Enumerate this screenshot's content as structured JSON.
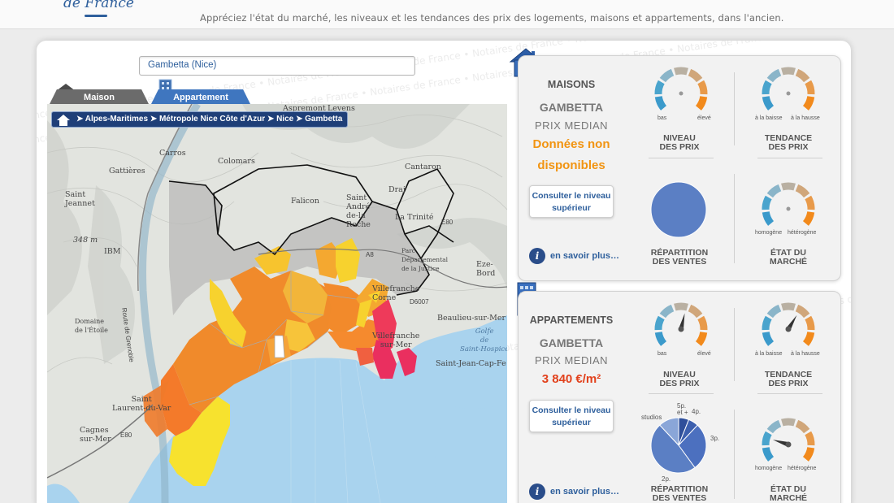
{
  "header": {
    "logo_text": "de France",
    "tagline": "Appréciez l'état du marché, les niveaux et les tendances des prix des logements, maisons et appartements, dans l'ancien."
  },
  "watermark_text": "Notaires de France • Notaires de France • Notaires de France • Notaires de France • Notaires de France • Notaires de France • Notaires de France • Notaires de France • Notaires de France • Notaires de France",
  "search": {
    "value": "Gambetta (Nice)"
  },
  "tabs": [
    {
      "label": "Maison",
      "active": false
    },
    {
      "label": "Appartement",
      "active": true
    }
  ],
  "breadcrumb": "➤ Alpes-Maritimes ➤ Métropole Nice Côte d'Azur ➤ Nice ➤ Gambetta",
  "map_labels": {
    "carros": "Carros",
    "colomars": "Colomars",
    "gattieres": "Gattières",
    "saint_jeannet": "Saint\nJeannet",
    "aspremont": "Aspremont",
    "levens": "Levens",
    "cantaron": "Cantaron",
    "falicon": "Falicon",
    "saint_andre": "Saint\nAndré\nde-la\nRoche",
    "draj": "Draj",
    "la_trinite": "La Trinité",
    "ibm": "IBM",
    "alt_348": "348 m",
    "route_grenoble": "Route de Grenoble",
    "domaine_etoile": "Domaine\nde l'Étoile",
    "saint_laurent": "Saint\nLaurent-du-Var",
    "cagnes": "Cagnes\nsur-Mer",
    "parc": "Parc\nDépartemental\nde la Justice",
    "eze": "Eze-Bord",
    "villefranche": "Villefranche\nsur-Mer",
    "villefranche2": "Villefranche\nCorne",
    "beaulieu": "Beaulieu-sur-Mer",
    "golfe": "Golfe\nde\nSaint-Hospice",
    "saint_jean": "Saint-Jean-Cap-Fe",
    "a8": "A8",
    "e80": "E80",
    "d6007": "D6007"
  },
  "maisons": {
    "type_label": "MAISONS",
    "name": "GAMBETTA",
    "median_label": "PRIX MEDIAN",
    "value": "Données non disponibles",
    "value_color": "#f29411",
    "button_label": "Consulter le niveau supérieur",
    "info_label": "en savoir plus…",
    "niveau_caption": "NIVEAU\nDES PRIX",
    "tendance_caption": "TENDANCE\nDES PRIX",
    "repartition_caption": "RÉPARTITION\nDES VENTES",
    "etat_caption": "ÉTAT DU\nMARCHÉ",
    "niveau_low": "bas",
    "niveau_high": "élevé",
    "tendance_low": "à la baisse",
    "tendance_high": "à la hausse",
    "etat_low": "homogène",
    "etat_high": "hétérogène",
    "niveau_level": null,
    "tendance_level": null,
    "etat_level": null
  },
  "appartements": {
    "type_label": "APPARTEMENTS",
    "name": "GAMBETTA",
    "median_label": "PRIX MEDIAN",
    "value": "3 840 €/m²",
    "value_color": "#e2401b",
    "button_label": "Consulter le niveau supérieur",
    "info_label": "en savoir plus…",
    "niveau_caption": "NIVEAU\nDES PRIX",
    "tendance_caption": "TENDANCE\nDES PRIX",
    "repartition_caption": "RÉPARTITION\nDES VENTES",
    "etat_caption": "ÉTAT DU\nMARCHÉ",
    "niveau_low": "bas",
    "niveau_high": "élevé",
    "tendance_low": "à la baisse",
    "tendance_high": "à la hausse",
    "etat_low": "homogène",
    "etat_high": "hétérogène",
    "niveau_level": 0.55,
    "tendance_level": 0.62,
    "etat_level": 0.22,
    "pie_labels": [
      "studios",
      "5p.\net +",
      "4p.",
      "3p.",
      "2p."
    ],
    "pie_shares": [
      0.12,
      0.06,
      0.06,
      0.28,
      0.48
    ]
  },
  "colors": {
    "gauge_segments": [
      "#3b9acb",
      "#4aa4cd",
      "#8ab5c9",
      "#b9b0a2",
      "#d0a67a",
      "#e89a4a",
      "#f28a1c"
    ],
    "brand_blue": "#2e5f9c",
    "tab_active": "#3f76bf",
    "tab_inactive": "#6b6b6b",
    "pie_blue": "#5b7fc4"
  }
}
